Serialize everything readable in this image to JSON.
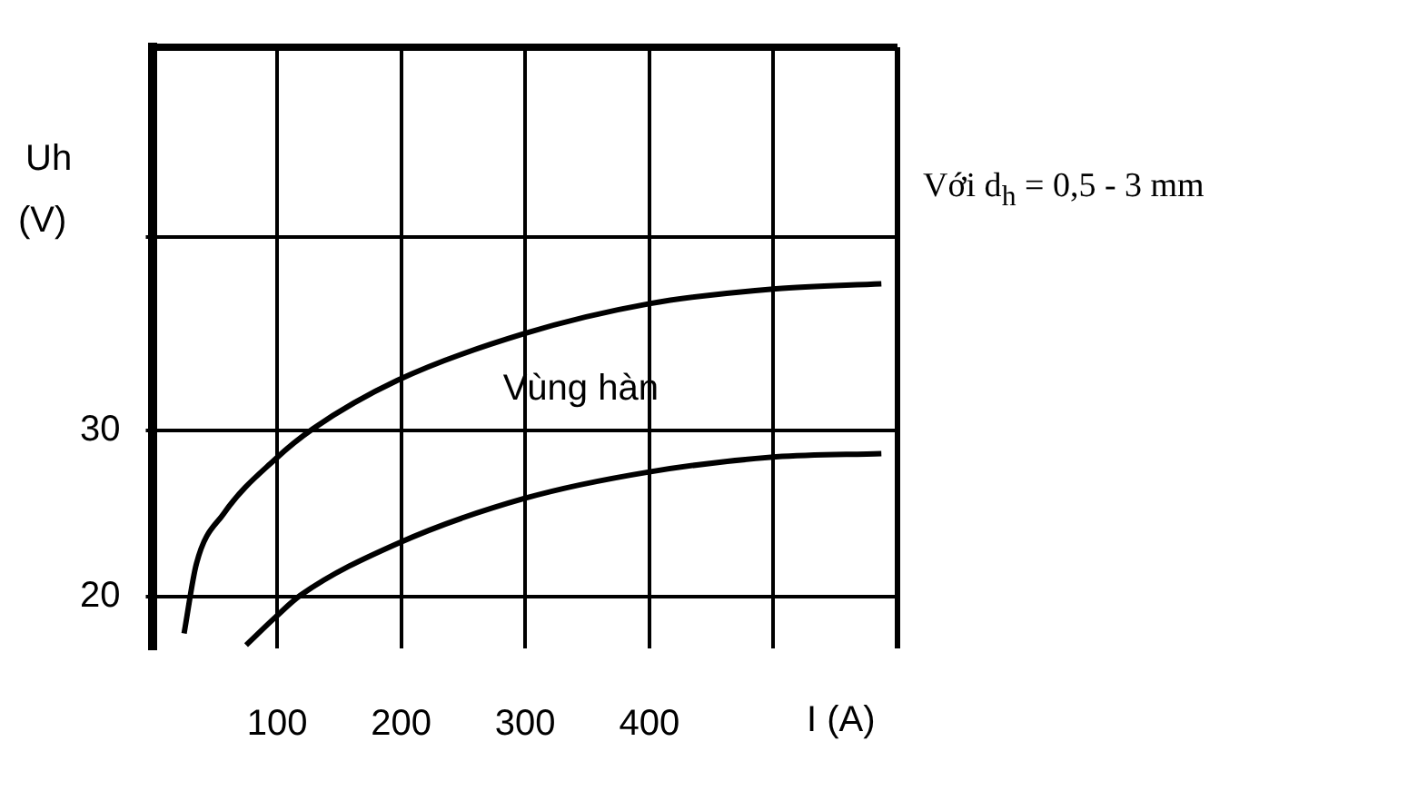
{
  "chart_data": {
    "type": "line",
    "ylabel": "Uh (V)",
    "xlabel": "I (A)",
    "xlim": [
      0,
      600
    ],
    "xticks": [
      100,
      200,
      300,
      400,
      {
        "value": 500,
        "label": null
      }
    ],
    "ylim": [
      16.9,
      53
    ],
    "yticks": [
      20,
      30,
      {
        "value": 41.6,
        "label": null
      }
    ],
    "grid": true,
    "legend": false,
    "marker": "none",
    "line_style": "solid",
    "series": [
      {
        "color": "#000000",
        "x": [
          25,
          35,
          57,
          99,
          129,
          197,
          299,
          400,
          502,
          587
        ],
        "values": [
          17.8,
          22.0,
          25.0,
          28.3,
          30.1,
          33.0,
          35.8,
          37.6,
          38.5,
          38.8
        ]
      },
      {
        "color": "#000000",
        "x": [
          75,
          99,
          119,
          197,
          299,
          400,
          502,
          587
        ],
        "values": [
          17.1,
          18.8,
          20.1,
          23.2,
          25.9,
          27.5,
          28.4,
          28.6
        ]
      }
    ],
    "annotations": [
      "Vùng hàn",
      "Với d$_{h}$ = 0,5 - 3 mm"
    ]
  }
}
